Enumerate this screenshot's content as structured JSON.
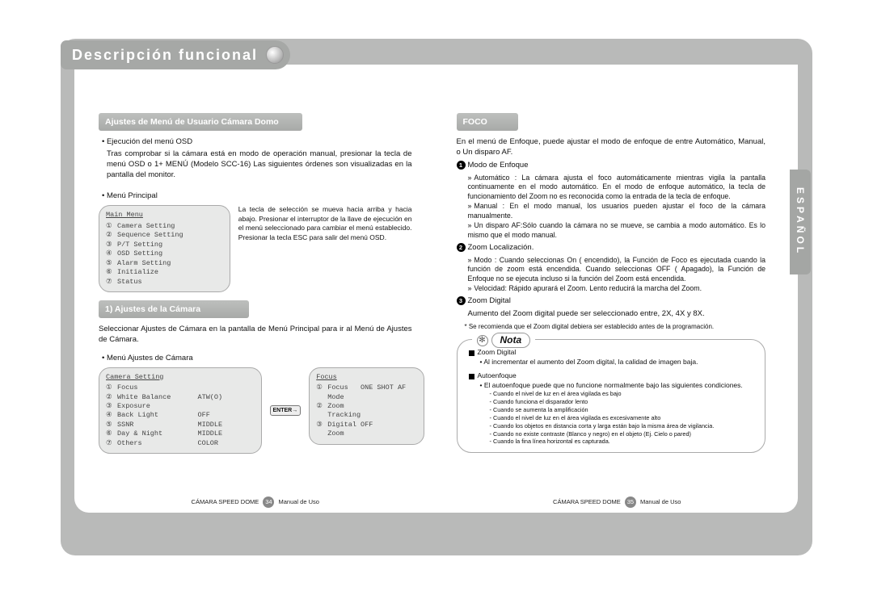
{
  "chapter_title": "Descripción funcional",
  "side_tab": "ESPAÑOL",
  "left": {
    "section_header": "Ajustes de Menú de Usuario Cámara Domo",
    "exec_heading": "Ejecución del menú OSD",
    "exec_body": "Tras comprobar si la cámara está en modo de operación manual, presionar la tecla de menú OSD o 1+ MENÚ (Modelo SCC-16) Las siguientes órdenes son visualizadas en la pantalla del monitor.",
    "main_menu_heading": "Menú Principal",
    "main_menu_desc": "La tecla de selección se mueva hacia arriba y hacia abajo. Presionar el interruptor de la llave de ejecución en el menú seleccionado para cambiar el menú establecido. Presionar la tecla ESC para salir del menú OSD.",
    "main_menu": {
      "title": "Main Menu",
      "items": [
        "Camera Setting",
        "Sequence Setting",
        "P/T Setting",
        "OSD Setting",
        "Alarm Setting",
        "Initialize",
        "Status"
      ]
    },
    "sub_header": "1) Ajustes de la Cámara",
    "sub_body": "Seleccionar Ajustes de Cámara en la pantalla de Menú Principal para ir al Menú de Ajustes de Cámara.",
    "cam_menu_heading": "Menú Ajustes de Cámara",
    "cam_menu": {
      "title": "Camera Setting",
      "rows": [
        {
          "lbl": "Focus",
          "val": ""
        },
        {
          "lbl": "White Balance",
          "val": "ATW(O)"
        },
        {
          "lbl": "Exposure",
          "val": ""
        },
        {
          "lbl": "Back Light",
          "val": "OFF"
        },
        {
          "lbl": "SSNR",
          "val": "MIDDLE"
        },
        {
          "lbl": "Day & Night",
          "val": "MIDDLE"
        },
        {
          "lbl": "Others",
          "val": "COLOR"
        }
      ]
    },
    "enter_label": "ENTER→",
    "focus_menu": {
      "title": "Focus",
      "rows": [
        {
          "lbl": "Focus Mode",
          "val": "ONE SHOT AF"
        },
        {
          "lbl": "Zoom Tracking",
          "val": ""
        },
        {
          "lbl": "Digital Zoom",
          "val": "OFF"
        }
      ]
    },
    "footer_left": "CÁMARA SPEED DOME",
    "footer_page": "34",
    "footer_right": "Manual de Uso"
  },
  "right": {
    "section_header": "FOCO",
    "intro": "En el menú de Enfoque, puede ajustar el modo de enfoque de entre Automático, Manual, o Un disparo AF.",
    "p1_title": "Modo de Enfoque",
    "p1_items": [
      "Automático : La cámara ajusta el foco automáticamente mientras vigila la pantalla continuamente en el modo automático. En el modo de enfoque automático, la tecla de funcionamiento del Zoom no es reconocida como la entrada de la tecla de enfoque.",
      "Manual : En el modo manual, los usuarios pueden ajustar el foco de la cámara manualmente.",
      "Un disparo AF:Sólo cuando la cámara no se mueve, se cambia a modo automático. Es lo mismo que el modo manual."
    ],
    "p2_title": "Zoom Localización.",
    "p2_items": [
      "Modo : Cuando seleccionas On ( encendido), la Función de Foco es ejecutada cuando la función de zoom está encendida. Cuando seleccionas OFF ( Apagado), la Función de Enfoque no se ejecuta incluso si la función del Zoom está encendida.",
      "Velocidad: Rápido apurará el Zoom. Lento reducirá la marcha del Zoom."
    ],
    "p3_title": "Zoom Digital",
    "p3_body": "Aumento del Zoom digital puede ser seleccionado entre, 2X, 4X y 8X.",
    "p3_note": "* Se recomienda que el Zoom digital debiera ser establecido antes de la programación.",
    "note_label": "Nota",
    "note_zoom_title": "Zoom Digital",
    "note_zoom_body": "Al incrementar el aumento del Zoom digital, la calidad de imagen baja.",
    "note_af_title": "Autoenfoque",
    "note_af_body": "El autoenfoque puede que no funcione normalmente bajo las siguientes condiciones.",
    "note_af_list": [
      "Cuando el nivel de luz en el área vigilada es bajo",
      "Cuando funciona el disparador lento",
      "Cuando se aumenta la amplificación",
      "Cuando el nivel de luz en el área vigilada es excesivamente alto",
      "Cuando los objetos en distancia corta y larga están bajo la misma área de vigilancia.",
      "Cuando no existe contraste (Blanco y negro) en el objeto (Ej. Cielo o pared)",
      "Cuando la fina línea horizontal es capturada."
    ],
    "footer_left": "CÁMARA SPEED DOME",
    "footer_page": "35",
    "footer_right": "Manual de Uso"
  }
}
